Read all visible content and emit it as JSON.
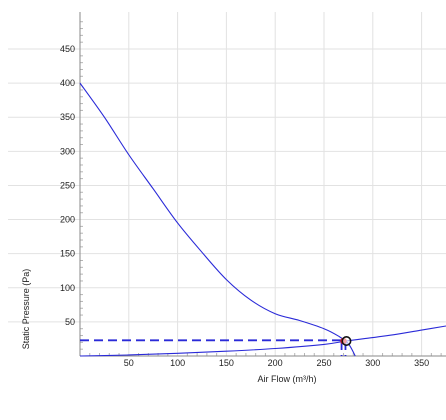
{
  "chart_data": {
    "type": "line",
    "xlabel": "Air Flow (m³/h)",
    "ylabel": "Static Pressure (Pa)",
    "xlim": [
      0,
      375
    ],
    "ylim": [
      -12,
      495
    ],
    "x_ticks": [
      50,
      100,
      150,
      200,
      250,
      300,
      350
    ],
    "y_ticks": [
      50,
      100,
      150,
      200,
      250,
      300,
      350,
      400,
      450
    ],
    "grid": true,
    "legend": "none",
    "series": [
      {
        "role": "fan-curve",
        "color": "#2a2ad8",
        "style": "solid",
        "points": [
          [
            0,
            400
          ],
          [
            25,
            350
          ],
          [
            50,
            295
          ],
          [
            75,
            245
          ],
          [
            100,
            195
          ],
          [
            125,
            152
          ],
          [
            150,
            112
          ],
          [
            175,
            82
          ],
          [
            200,
            62
          ],
          [
            225,
            52
          ],
          [
            250,
            40
          ],
          [
            265,
            29
          ],
          [
            275,
            18
          ],
          [
            282,
            0
          ]
        ]
      },
      {
        "role": "system-curve",
        "color": "#2a2ad8",
        "style": "solid",
        "points": [
          [
            0,
            0
          ],
          [
            50,
            1.5
          ],
          [
            100,
            4
          ],
          [
            150,
            7
          ],
          [
            200,
            11
          ],
          [
            250,
            17
          ],
          [
            273,
            22
          ],
          [
            300,
            27
          ],
          [
            325,
            32
          ],
          [
            350,
            38
          ],
          [
            375,
            44
          ]
        ]
      },
      {
        "role": "operating-level",
        "color": "#2a2ad8",
        "style": "dashed",
        "points": [
          [
            0,
            23
          ],
          [
            273,
            23
          ]
        ]
      },
      {
        "role": "operating-drop",
        "color": "#2a2ad8",
        "style": "dashed",
        "points": [
          [
            268,
            22
          ],
          [
            268,
            0
          ]
        ]
      },
      {
        "role": "operating-drop-2",
        "color": "#2a2ad8",
        "style": "dashed",
        "points": [
          [
            272,
            22
          ],
          [
            272,
            0
          ]
        ]
      }
    ],
    "operating_point": {
      "x": 273,
      "y": 22,
      "fill_color": "#ffffff",
      "stroke_color": "#111111"
    },
    "operating_marker": {
      "x": 270,
      "y": 22,
      "color": "#e01919"
    }
  }
}
